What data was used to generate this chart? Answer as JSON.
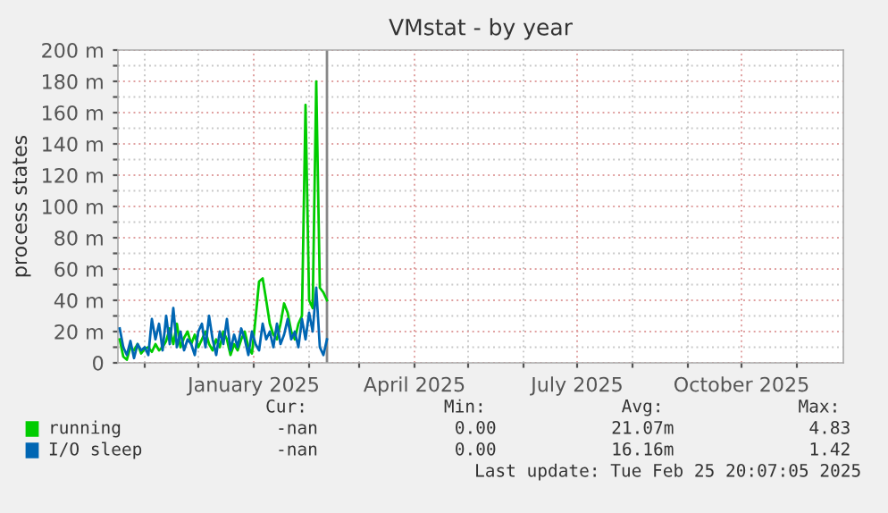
{
  "chart_data": {
    "type": "line",
    "title": "VMstat - by year",
    "ylabel": "process states",
    "x": [
      "2024-10-18",
      "2024-10-20",
      "2024-10-22",
      "2024-10-24",
      "2024-10-26",
      "2024-10-28",
      "2024-10-30",
      "2024-11-01",
      "2024-11-03",
      "2024-11-05",
      "2024-11-07",
      "2024-11-09",
      "2024-11-11",
      "2024-11-13",
      "2024-11-15",
      "2024-11-17",
      "2024-11-19",
      "2024-11-21",
      "2024-11-23",
      "2024-11-25",
      "2024-11-27",
      "2024-11-29",
      "2024-12-01",
      "2024-12-03",
      "2024-12-05",
      "2024-12-07",
      "2024-12-09",
      "2024-12-11",
      "2024-12-13",
      "2024-12-15",
      "2024-12-17",
      "2024-12-19",
      "2024-12-21",
      "2024-12-23",
      "2024-12-25",
      "2024-12-27",
      "2024-12-29",
      "2024-12-31",
      "2025-01-02",
      "2025-01-04",
      "2025-01-06",
      "2025-01-08",
      "2025-01-10",
      "2025-01-12",
      "2025-01-14",
      "2025-01-16",
      "2025-01-18",
      "2025-01-20",
      "2025-01-22",
      "2025-01-24",
      "2025-01-26",
      "2025-01-28",
      "2025-01-30",
      "2025-02-01",
      "2025-02-03",
      "2025-02-05",
      "2025-02-07",
      "2025-02-09",
      "2025-02-11"
    ],
    "series": [
      {
        "name": "running",
        "color": "#00cc00",
        "values": [
          15,
          4,
          2,
          10,
          8,
          12,
          6,
          9,
          10,
          7,
          12,
          8,
          10,
          14,
          22,
          12,
          25,
          10,
          16,
          20,
          12,
          18,
          10,
          15,
          20,
          12,
          8,
          15,
          10,
          20,
          15,
          5,
          12,
          8,
          15,
          20,
          10,
          6,
          28,
          52,
          54,
          40,
          25,
          18,
          15,
          25,
          38,
          32,
          20,
          15,
          25,
          30,
          165,
          40,
          35,
          180,
          48,
          45,
          40
        ]
      },
      {
        "name": "I/O sleep",
        "color": "#0066b3",
        "values": [
          22,
          10,
          5,
          14,
          3,
          12,
          8,
          10,
          5,
          28,
          15,
          25,
          8,
          30,
          12,
          35,
          10,
          20,
          8,
          15,
          12,
          5,
          20,
          25,
          10,
          30,
          15,
          5,
          20,
          12,
          28,
          8,
          18,
          10,
          22,
          15,
          5,
          20,
          12,
          8,
          25,
          15,
          20,
          10,
          25,
          12,
          18,
          28,
          15,
          20,
          10,
          28,
          15,
          32,
          20,
          48,
          10,
          5,
          15
        ]
      }
    ],
    "xlim": [
      "2024-10-17",
      "2025-11-27"
    ],
    "xticks": [
      {
        "value": "2024-11-01",
        "label": null
      },
      {
        "value": "2024-12-01",
        "label": null
      },
      {
        "value": "2025-01-01",
        "label": "January 2025"
      },
      {
        "value": "2025-02-01",
        "label": null
      },
      {
        "value": "2025-03-01",
        "label": null
      },
      {
        "value": "2025-04-01",
        "label": "April 2025"
      },
      {
        "value": "2025-05-01",
        "label": null
      },
      {
        "value": "2025-06-01",
        "label": null
      },
      {
        "value": "2025-07-01",
        "label": "July 2025"
      },
      {
        "value": "2025-08-01",
        "label": null
      },
      {
        "value": "2025-09-01",
        "label": null
      },
      {
        "value": "2025-10-01",
        "label": "October 2025"
      },
      {
        "value": "2025-11-01",
        "label": null
      }
    ],
    "ylim": [
      0,
      200
    ],
    "yticks": [
      0,
      {
        "value": 10,
        "label": null
      },
      {
        "value": 20,
        "label": "20 m"
      },
      {
        "value": 30,
        "label": null
      },
      {
        "value": 40,
        "label": "40 m"
      },
      {
        "value": 50,
        "label": null
      },
      {
        "value": 60,
        "label": "60 m"
      },
      {
        "value": 70,
        "label": null
      },
      {
        "value": 80,
        "label": "80 m"
      },
      {
        "value": 90,
        "label": null
      },
      {
        "value": 100,
        "label": "100 m"
      },
      {
        "value": 110,
        "label": null
      },
      {
        "value": 120,
        "label": "120 m"
      },
      {
        "value": 130,
        "label": null
      },
      {
        "value": 140,
        "label": "140 m"
      },
      {
        "value": 150,
        "label": null
      },
      {
        "value": 160,
        "label": "160 m"
      },
      {
        "value": 170,
        "label": null
      },
      {
        "value": 180,
        "label": "180 m"
      },
      {
        "value": 190,
        "label": null
      },
      {
        "value": 200,
        "label": "200 m"
      }
    ],
    "ref_lines": [
      {
        "axis": "x",
        "value": "2025-02-11",
        "color": "#888888"
      }
    ],
    "grid": true,
    "legend": "bottom",
    "marker": "none",
    "line_style": "solid",
    "annotations": [
      "Cur:",
      "Min:",
      "Avg:",
      "Max:",
      "-nan",
      "0.00",
      "21.07m",
      "4.83",
      "-nan",
      "0.00",
      "16.16m",
      "1.42",
      "Last update: Tue Feb 25 20:07:05 2025"
    ]
  }
}
